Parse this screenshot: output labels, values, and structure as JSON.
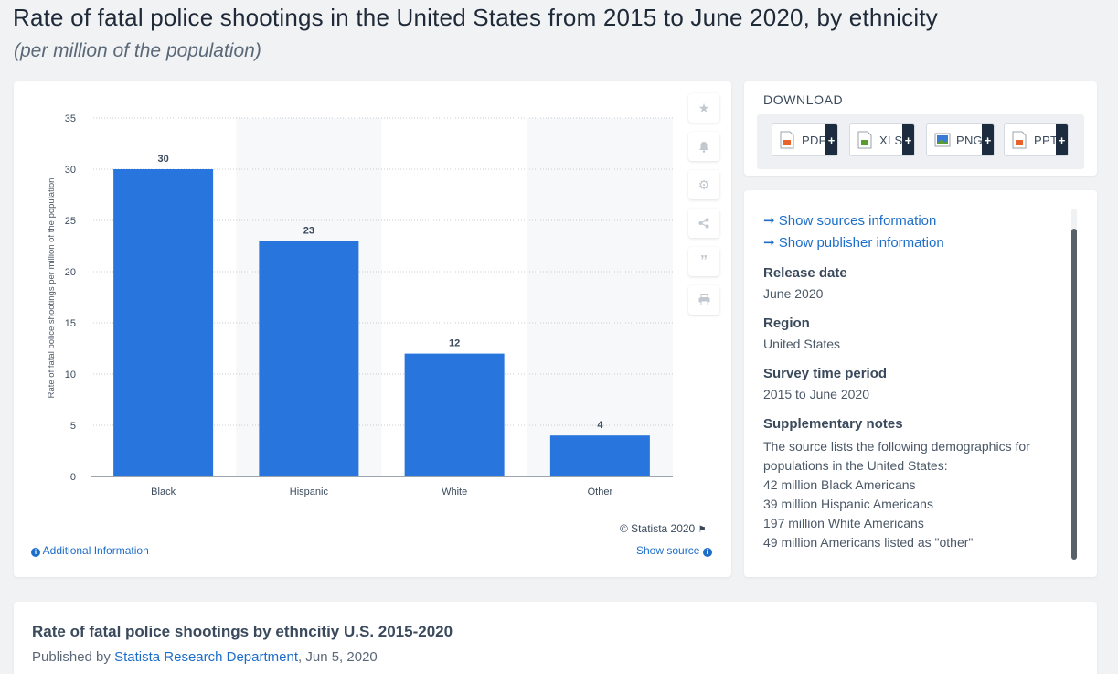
{
  "header": {
    "title": "Rate of fatal police shootings in the United States from 2015 to June 2020, by ethnicity",
    "subtitle": "(per million of the population)"
  },
  "chart_data": {
    "type": "bar",
    "categories": [
      "Black",
      "Hispanic",
      "White",
      "Other"
    ],
    "values": [
      30,
      23,
      12,
      4
    ],
    "data_labels": [
      "30",
      "23",
      "12",
      "4"
    ],
    "ylabel": "Rate of fatal police shootings per million of the population",
    "xlabel": "",
    "ylim": [
      0,
      35
    ],
    "yticks": [
      "0",
      "5",
      "10",
      "15",
      "20",
      "25",
      "30",
      "35"
    ],
    "grid": true,
    "bar_color": "#2876dd",
    "alt_band_color": "#f7f8f9"
  },
  "chart_footer": {
    "copyright": "© Statista 2020",
    "additional_info": "Additional Information",
    "show_source": "Show source"
  },
  "toolbar": {
    "icons": [
      "star-icon",
      "bell-icon",
      "gear-icon",
      "share-icon",
      "quote-icon",
      "print-icon"
    ]
  },
  "download": {
    "title": "DOWNLOAD",
    "buttons": [
      {
        "label": "PDF",
        "icon": "pdf-file-icon",
        "color": "#e8632b"
      },
      {
        "label": "XLS",
        "icon": "xls-file-icon",
        "color": "#5a9c2e"
      },
      {
        "label": "PNG",
        "icon": "png-file-icon",
        "color": "#3a7bd5"
      },
      {
        "label": "PPT",
        "icon": "ppt-file-icon",
        "color": "#e8632b"
      }
    ],
    "plus": "+"
  },
  "info": {
    "sources_link": "Show sources information",
    "publisher_link": "Show publisher information",
    "release_date_label": "Release date",
    "release_date": "June 2020",
    "region_label": "Region",
    "region": "United States",
    "survey_label": "Survey time period",
    "survey": "2015 to June 2020",
    "notes_label": "Supplementary notes",
    "notes_lines": [
      "The source lists the following demographics for populations in the United States:",
      "42 million Black Americans",
      "39 million Hispanic Americans",
      "197 million White Americans",
      "49 million Americans listed as \"other\""
    ]
  },
  "bottom": {
    "title": "Rate of fatal police shootings by ethncitiy U.S. 2015-2020",
    "published_prefix": "Published by",
    "publisher": "Statista Research Department",
    "date": ", Jun 5, 2020"
  },
  "colors": {
    "accent": "#1d6ec8",
    "bar": "#2876dd",
    "dark_plus": "#1c2b3d"
  }
}
